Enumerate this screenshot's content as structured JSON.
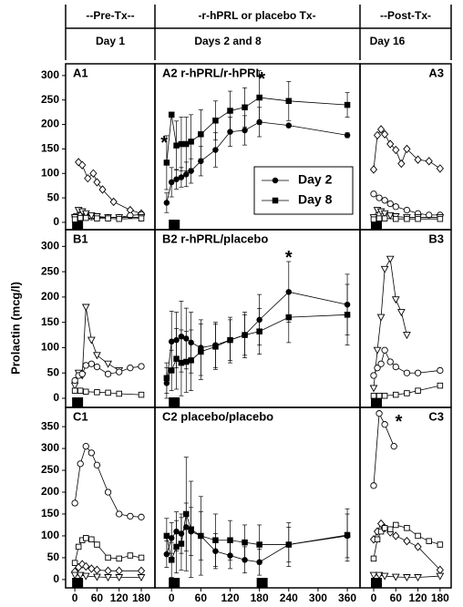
{
  "headers": [
    {
      "title": "--Pre-Tx--",
      "subtitle": "Day 1"
    },
    {
      "title": "-r-hPRL or placebo Tx-",
      "subtitle": "Days 2 and 8"
    },
    {
      "title": "--Post-Tx-",
      "subtitle": "Day 16"
    }
  ],
  "y_label": "Prolactin (mcg/l)",
  "chart_data": [
    {
      "type": "line",
      "title": "A1",
      "color": "#000000",
      "xlim": [
        -25,
        217
      ],
      "ylim": [
        -15,
        324
      ],
      "yticks": [
        0,
        50,
        100,
        150,
        200,
        250,
        300
      ],
      "dose_times": [
        0
      ],
      "series": [
        {
          "marker": "diamond-open",
          "x": [
            10,
            20,
            35,
            50,
            60,
            75,
            105,
            150,
            180
          ],
          "values": [
            123,
            117,
            90,
            100,
            82,
            67,
            42,
            25,
            18
          ]
        },
        {
          "marker": "circle-open",
          "x": [
            0,
            15,
            30,
            45,
            60,
            90,
            120,
            150,
            180
          ],
          "values": [
            12,
            14,
            12,
            11,
            10,
            10,
            10,
            14,
            16
          ]
        },
        {
          "marker": "triangle-open",
          "x": [
            0,
            10,
            20,
            30,
            45,
            60,
            90,
            120,
            180
          ],
          "values": [
            10,
            25,
            22,
            18,
            14,
            12,
            10,
            10,
            10
          ]
        },
        {
          "marker": "square-open",
          "x": [
            0,
            15,
            30,
            60,
            90,
            120,
            180
          ],
          "values": [
            6,
            9,
            9,
            8,
            8,
            7,
            8
          ]
        }
      ]
    },
    {
      "type": "line",
      "title": "A2 r-hPRL/r-hPRL",
      "color": "#000000",
      "xlim": [
        -34,
        386
      ],
      "ylim": [
        -15,
        324
      ],
      "dose_times": [
        0
      ],
      "legend": "lower-right",
      "annotations": [
        {
          "text": "*",
          "x": -15,
          "y": 170
        },
        {
          "text": "*",
          "x": 185,
          "y": 300
        }
      ],
      "series": [
        {
          "name": "Day 2",
          "marker": "circle-filled",
          "x": [
            -10,
            0,
            10,
            20,
            30,
            40,
            60,
            90,
            120,
            150,
            180,
            240,
            360
          ],
          "values": [
            40,
            82,
            88,
            92,
            98,
            105,
            125,
            148,
            185,
            188,
            205,
            198,
            178
          ],
          "errors": [
            20,
            30,
            20,
            20,
            25,
            25,
            30,
            35,
            30,
            30,
            30,
            2,
            5
          ]
        },
        {
          "name": "Day 8",
          "marker": "square-filled",
          "x": [
            -10,
            0,
            10,
            20,
            30,
            40,
            60,
            90,
            120,
            150,
            180,
            240,
            360
          ],
          "values": [
            122,
            220,
            157,
            160,
            160,
            165,
            180,
            208,
            228,
            235,
            255,
            248,
            240
          ],
          "errors": [
            55,
            5,
            50,
            55,
            55,
            55,
            50,
            40,
            40,
            40,
            55,
            40,
            25
          ]
        }
      ]
    },
    {
      "type": "line",
      "title": "A3",
      "color": "#000000",
      "xlim": [
        -37,
        210
      ],
      "ylim": [
        -15,
        324
      ],
      "dose_times": [
        0
      ],
      "series": [
        {
          "marker": "diamond-open",
          "x": [
            0,
            10,
            20,
            30,
            45,
            60,
            75,
            90,
            120,
            150,
            180
          ],
          "values": [
            108,
            178,
            190,
            180,
            160,
            148,
            120,
            150,
            128,
            125,
            110
          ]
        },
        {
          "marker": "circle-open",
          "x": [
            0,
            15,
            30,
            45,
            60,
            90,
            120,
            150,
            180
          ],
          "values": [
            58,
            50,
            45,
            38,
            32,
            25,
            18,
            15,
            15
          ]
        },
        {
          "marker": "triangle-open",
          "x": [
            0,
            10,
            20,
            30,
            45,
            60,
            90,
            120,
            180
          ],
          "values": [
            10,
            25,
            22,
            18,
            14,
            12,
            10,
            10,
            10
          ]
        },
        {
          "marker": "square-open",
          "x": [
            0,
            15,
            30,
            60,
            90,
            120,
            180
          ],
          "values": [
            6,
            8,
            8,
            7,
            7,
            7,
            7
          ]
        }
      ]
    },
    {
      "type": "line",
      "title": "B1",
      "color": "#000000",
      "xlim": [
        -25,
        217
      ],
      "ylim": [
        -18,
        333
      ],
      "yticks": [
        0,
        50,
        100,
        150,
        200,
        250,
        300
      ],
      "dose_times": [
        0
      ],
      "series": [
        {
          "marker": "triangle-open",
          "x": [
            0,
            10,
            20,
            30,
            45,
            60,
            90,
            120
          ],
          "values": [
            25,
            50,
            45,
            180,
            115,
            85,
            68,
            55
          ]
        },
        {
          "marker": "circle-open",
          "x": [
            0,
            10,
            20,
            30,
            45,
            60,
            90,
            120,
            150,
            180
          ],
          "values": [
            35,
            45,
            48,
            65,
            68,
            62,
            48,
            52,
            60,
            63
          ]
        },
        {
          "marker": "square-open",
          "x": [
            0,
            15,
            30,
            60,
            90,
            120,
            180
          ],
          "values": [
            15,
            15,
            13,
            12,
            11,
            9,
            7
          ]
        }
      ]
    },
    {
      "type": "line",
      "title": "B2 r-hPRL/placebo",
      "color": "#000000",
      "xlim": [
        -34,
        386
      ],
      "ylim": [
        -18,
        333
      ],
      "dose_times": [
        0
      ],
      "annotations": [
        {
          "text": "*",
          "x": 240,
          "y": 285
        }
      ],
      "series": [
        {
          "marker": "circle-filled",
          "x": [
            -10,
            0,
            10,
            20,
            30,
            40,
            60,
            90,
            120,
            150,
            180,
            240,
            360
          ],
          "values": [
            30,
            112,
            115,
            122,
            118,
            110,
            100,
            105,
            115,
            125,
            155,
            210,
            185
          ],
          "errors": [
            30,
            60,
            55,
            70,
            60,
            60,
            55,
            45,
            45,
            45,
            50,
            60,
            60
          ]
        },
        {
          "marker": "square-filled",
          "x": [
            -10,
            0,
            10,
            20,
            30,
            40,
            60,
            90,
            120,
            150,
            180,
            240,
            360
          ],
          "values": [
            40,
            55,
            78,
            70,
            72,
            75,
            92,
            102,
            115,
            125,
            132,
            160,
            165
          ],
          "errors": [
            30,
            40,
            60,
            65,
            60,
            60,
            55,
            45,
            40,
            40,
            45,
            50,
            60
          ]
        }
      ]
    },
    {
      "type": "line",
      "title": "B3",
      "color": "#000000",
      "xlim": [
        -37,
        210
      ],
      "ylim": [
        -18,
        333
      ],
      "dose_times": [
        0
      ],
      "series": [
        {
          "marker": "triangle-open",
          "x": [
            0,
            10,
            20,
            30,
            45,
            60,
            75,
            90
          ],
          "values": [
            20,
            95,
            160,
            255,
            275,
            195,
            170,
            125
          ]
        },
        {
          "marker": "circle-open",
          "x": [
            0,
            10,
            20,
            30,
            45,
            60,
            90,
            120,
            180
          ],
          "values": [
            45,
            60,
            68,
            95,
            72,
            62,
            50,
            50,
            55
          ]
        },
        {
          "marker": "square-open",
          "x": [
            0,
            15,
            30,
            60,
            90,
            120,
            180
          ],
          "values": [
            5,
            5,
            5,
            7,
            10,
            15,
            25
          ]
        }
      ]
    },
    {
      "type": "line",
      "title": "C1",
      "color": "#000000",
      "xlim": [
        -25,
        217
      ],
      "ylim": [
        -19,
        394
      ],
      "yticks": [
        0,
        50,
        100,
        150,
        200,
        250,
        300,
        350
      ],
      "xticks": [
        0,
        60,
        120,
        180
      ],
      "dose_times": [
        0
      ],
      "series": [
        {
          "marker": "circle-open",
          "x": [
            0,
            15,
            30,
            45,
            60,
            90,
            120,
            150,
            180
          ],
          "values": [
            175,
            265,
            305,
            290,
            262,
            200,
            150,
            145,
            143
          ]
        },
        {
          "marker": "square-open",
          "x": [
            0,
            10,
            20,
            30,
            45,
            60,
            90,
            120,
            150,
            180
          ],
          "values": [
            38,
            75,
            90,
            95,
            92,
            80,
            50,
            48,
            55,
            50
          ]
        },
        {
          "marker": "diamond-open",
          "x": [
            0,
            10,
            20,
            30,
            45,
            60,
            90,
            120,
            180
          ],
          "values": [
            18,
            28,
            35,
            30,
            25,
            22,
            20,
            20,
            20
          ]
        },
        {
          "marker": "triangle-open",
          "x": [
            0,
            15,
            30,
            60,
            90,
            120,
            180
          ],
          "values": [
            10,
            10,
            8,
            6,
            5,
            5,
            5
          ]
        }
      ]
    },
    {
      "type": "line",
      "title": "C2 placebo/placebo",
      "color": "#000000",
      "xlim": [
        -34,
        386
      ],
      "ylim": [
        -19,
        394
      ],
      "xticks": [
        0,
        60,
        120,
        180,
        240,
        300,
        360
      ],
      "dose_times": [
        0,
        180
      ],
      "series": [
        {
          "marker": "circle-filled",
          "x": [
            -10,
            0,
            10,
            20,
            30,
            40,
            60,
            90,
            120,
            150,
            180,
            240,
            360
          ],
          "values": [
            58,
            95,
            110,
            105,
            120,
            110,
            100,
            65,
            55,
            45,
            40,
            80,
            100
          ],
          "errors": [
            30,
            35,
            45,
            45,
            55,
            55,
            55,
            40,
            30,
            30,
            30,
            40,
            50
          ]
        },
        {
          "marker": "square-filled",
          "x": [
            -10,
            0,
            10,
            20,
            30,
            40,
            60,
            90,
            120,
            150,
            180,
            240,
            360
          ],
          "values": [
            100,
            45,
            75,
            82,
            150,
            115,
            100,
            90,
            90,
            85,
            80,
            80,
            102
          ],
          "errors": [
            40,
            40,
            60,
            60,
            130,
            110,
            90,
            60,
            45,
            40,
            45,
            50,
            60
          ]
        }
      ]
    },
    {
      "type": "line",
      "title": "C3",
      "color": "#000000",
      "xlim": [
        -37,
        210
      ],
      "ylim": [
        -19,
        394
      ],
      "xticks": [
        0,
        60,
        120,
        180
      ],
      "dose_times": [
        0
      ],
      "annotations": [
        {
          "text": "*",
          "x": 68,
          "y": 370
        }
      ],
      "series": [
        {
          "marker": "circle-open",
          "x": [
            0,
            15,
            30,
            55
          ],
          "values": [
            215,
            380,
            355,
            305
          ]
        },
        {
          "marker": "diamond-open",
          "x": [
            0,
            10,
            20,
            30,
            45,
            60,
            90,
            120,
            180
          ],
          "values": [
            92,
            110,
            128,
            118,
            108,
            100,
            88,
            75,
            22
          ]
        },
        {
          "marker": "square-open",
          "x": [
            0,
            10,
            20,
            30,
            45,
            60,
            90,
            120,
            150,
            180
          ],
          "values": [
            48,
            92,
            110,
            118,
            115,
            125,
            118,
            100,
            88,
            80
          ]
        },
        {
          "marker": "triangle-open",
          "x": [
            0,
            15,
            30,
            60,
            90,
            120,
            180
          ],
          "values": [
            10,
            10,
            8,
            6,
            5,
            5,
            8
          ]
        }
      ]
    }
  ]
}
